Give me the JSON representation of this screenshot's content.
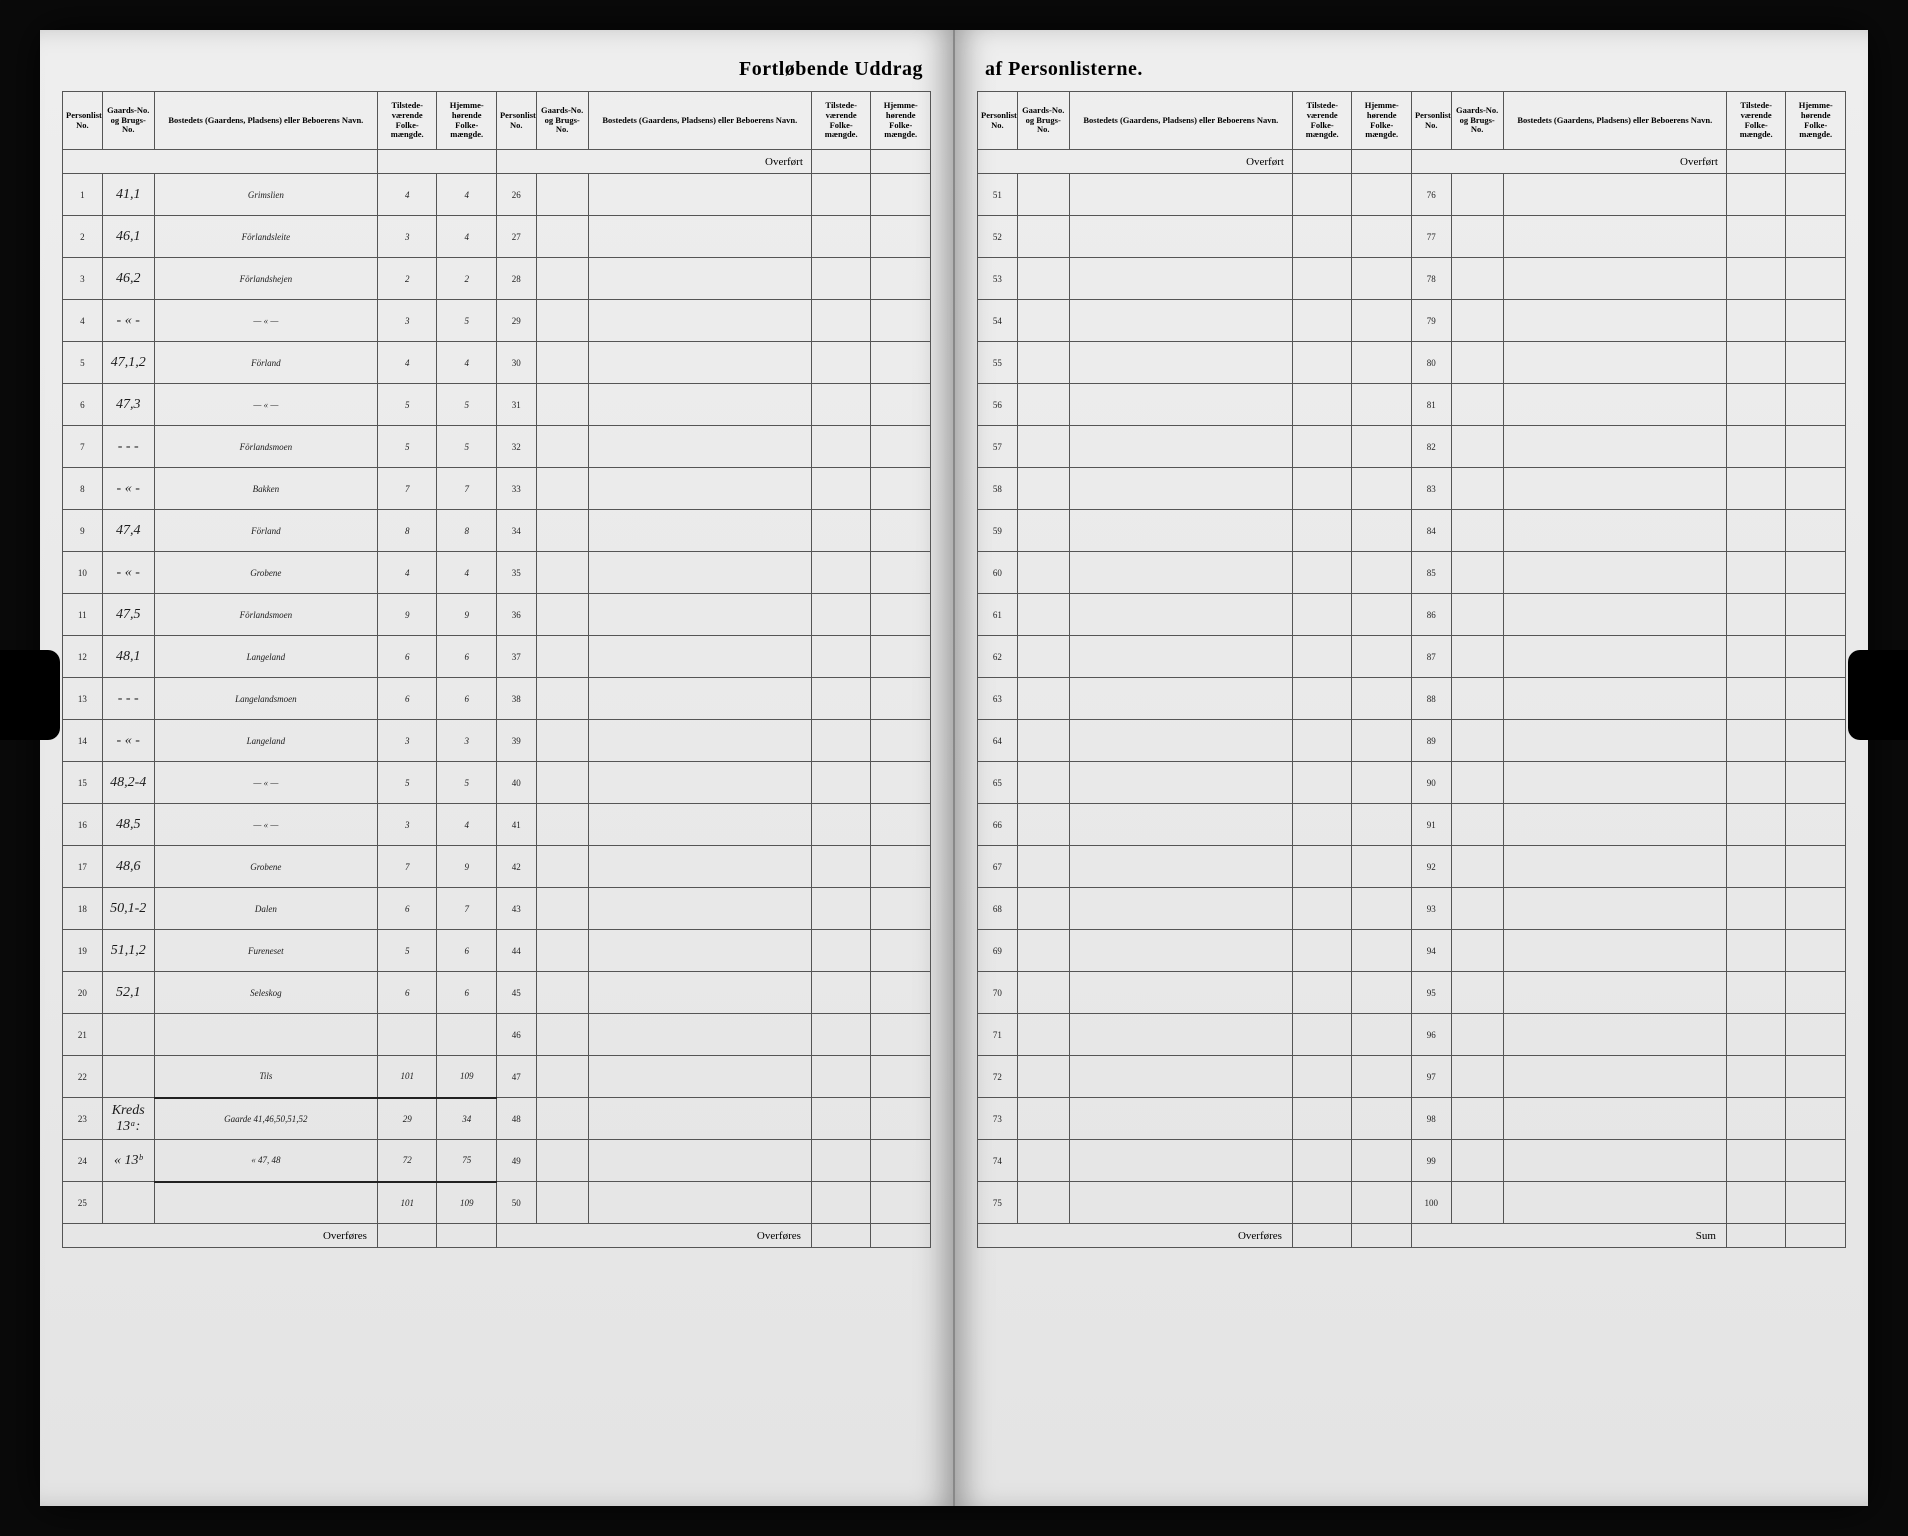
{
  "title_left": "Fortløbende Uddrag",
  "title_right": "af Personlisterne.",
  "headers": {
    "person": "Personlistens No.",
    "gaard": "Gaards-No. og Brugs-No.",
    "bosted": "Bostedets (Gaardens, Pladsens) eller Beboerens Navn.",
    "tilstede": "Tilstede-værende Folke-mængde.",
    "hjemme": "Hjemme-hørende Folke-mængde."
  },
  "overfort": "Overført",
  "overfores": "Overføres",
  "sum": "Sum",
  "left_block1": [
    {
      "n": "1",
      "g": "41,1",
      "name": "Grimslien",
      "t": "4",
      "h": "4"
    },
    {
      "n": "2",
      "g": "46,1",
      "name": "Förlandsleite",
      "t": "3",
      "h": "4"
    },
    {
      "n": "3",
      "g": "46,2",
      "name": "Förlandshejen",
      "t": "2",
      "h": "2"
    },
    {
      "n": "4",
      "g": "- « -",
      "name": "— « —",
      "t": "3",
      "h": "5"
    },
    {
      "n": "5",
      "g": "47,1,2",
      "name": "Förland",
      "t": "4",
      "h": "4"
    },
    {
      "n": "6",
      "g": "47,3",
      "name": "— « —",
      "t": "5",
      "h": "5"
    },
    {
      "n": "7",
      "g": "- - -",
      "name": "Förlandsmoen",
      "t": "5",
      "h": "5"
    },
    {
      "n": "8",
      "g": "- « -",
      "name": "Bakken",
      "t": "7",
      "h": "7"
    },
    {
      "n": "9",
      "g": "47,4",
      "name": "Förland",
      "t": "8",
      "h": "8"
    },
    {
      "n": "10",
      "g": "- « -",
      "name": "Grobene",
      "t": "4",
      "h": "4"
    },
    {
      "n": "11",
      "g": "47,5",
      "name": "Förlandsmoen",
      "t": "9",
      "h": "9"
    },
    {
      "n": "12",
      "g": "48,1",
      "name": "Langeland",
      "t": "6",
      "h": "6"
    },
    {
      "n": "13",
      "g": "- - -",
      "name": "Langelandsmoen",
      "t": "6",
      "h": "6"
    },
    {
      "n": "14",
      "g": "- « -",
      "name": "Langeland",
      "t": "3",
      "h": "3"
    },
    {
      "n": "15",
      "g": "48,2-4",
      "name": "— « —",
      "t": "5",
      "h": "5"
    },
    {
      "n": "16",
      "g": "48,5",
      "name": "— « —",
      "t": "3",
      "h": "4"
    },
    {
      "n": "17",
      "g": "48,6",
      "name": "Grobene",
      "t": "7",
      "h": "9"
    },
    {
      "n": "18",
      "g": "50,1-2",
      "name": "Dalen",
      "t": "6",
      "h": "7"
    },
    {
      "n": "19",
      "g": "51,1,2",
      "name": "Fureneset",
      "t": "5",
      "h": "6"
    },
    {
      "n": "20",
      "g": "52,1",
      "name": "Seleskog",
      "t": "6",
      "h": "6"
    },
    {
      "n": "21",
      "g": "",
      "name": "",
      "t": "",
      "h": ""
    },
    {
      "n": "22",
      "g": "",
      "name": "Tils",
      "t": "101",
      "h": "109",
      "ul": true
    },
    {
      "n": "23",
      "g": "Kreds 13ᵃ:",
      "name": "Gaarde 41,46,50,51,52",
      "t": "29",
      "h": "34"
    },
    {
      "n": "24",
      "g": "« 13ᵇ",
      "name": "« 47, 48",
      "t": "72",
      "h": "75",
      "ul": true
    },
    {
      "n": "25",
      "g": "",
      "name": "",
      "t": "101",
      "h": "109"
    }
  ],
  "left_block2_start": 26,
  "left_block2_end": 50,
  "right_block1_start": 51,
  "right_block1_end": 75,
  "right_block2_start": 76,
  "right_block2_end": 100
}
